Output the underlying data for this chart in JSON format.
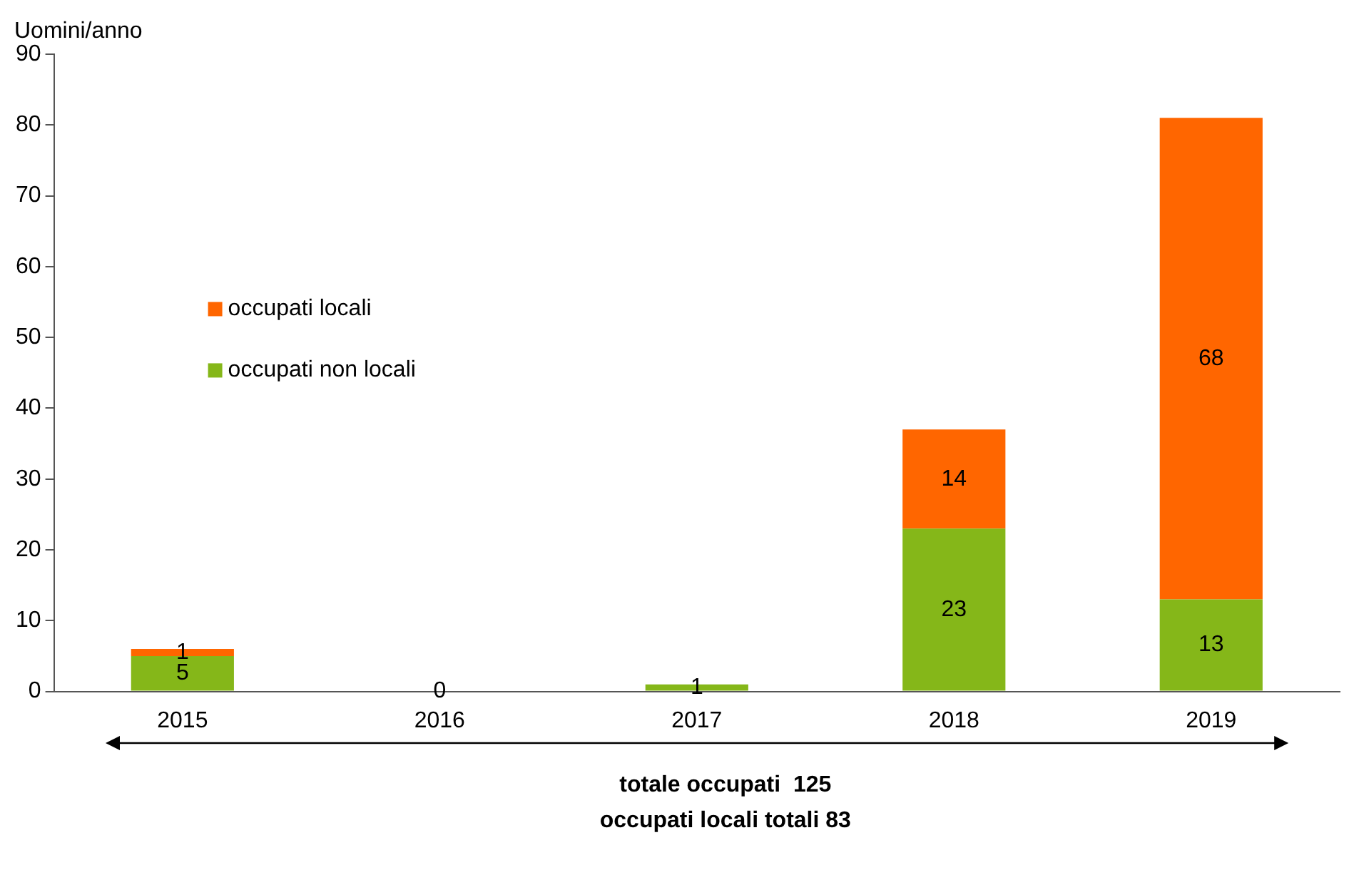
{
  "chart_data": {
    "type": "bar",
    "stacked": true,
    "ylabel": "Uomini/anno",
    "categories": [
      "2015",
      "2016",
      "2017",
      "2018",
      "2019"
    ],
    "ylim": [
      0,
      90
    ],
    "yticks": [
      0,
      10,
      20,
      30,
      40,
      50,
      60,
      70,
      80,
      90
    ],
    "grid": false,
    "legend": "center left",
    "series": [
      {
        "name": "occupati non locali",
        "color": "#85b719",
        "values": [
          5,
          0,
          1,
          23,
          13
        ],
        "value_labels": [
          "5",
          "0",
          "1",
          "23",
          "13"
        ]
      },
      {
        "name": "occupati locali",
        "color": "#ff6600",
        "values": [
          1,
          0,
          0,
          14,
          68
        ],
        "value_labels": [
          "1",
          null,
          null,
          "14",
          "68"
        ]
      }
    ],
    "annotations": [
      "totale occupati  125",
      "occupati locali totali 83"
    ]
  }
}
